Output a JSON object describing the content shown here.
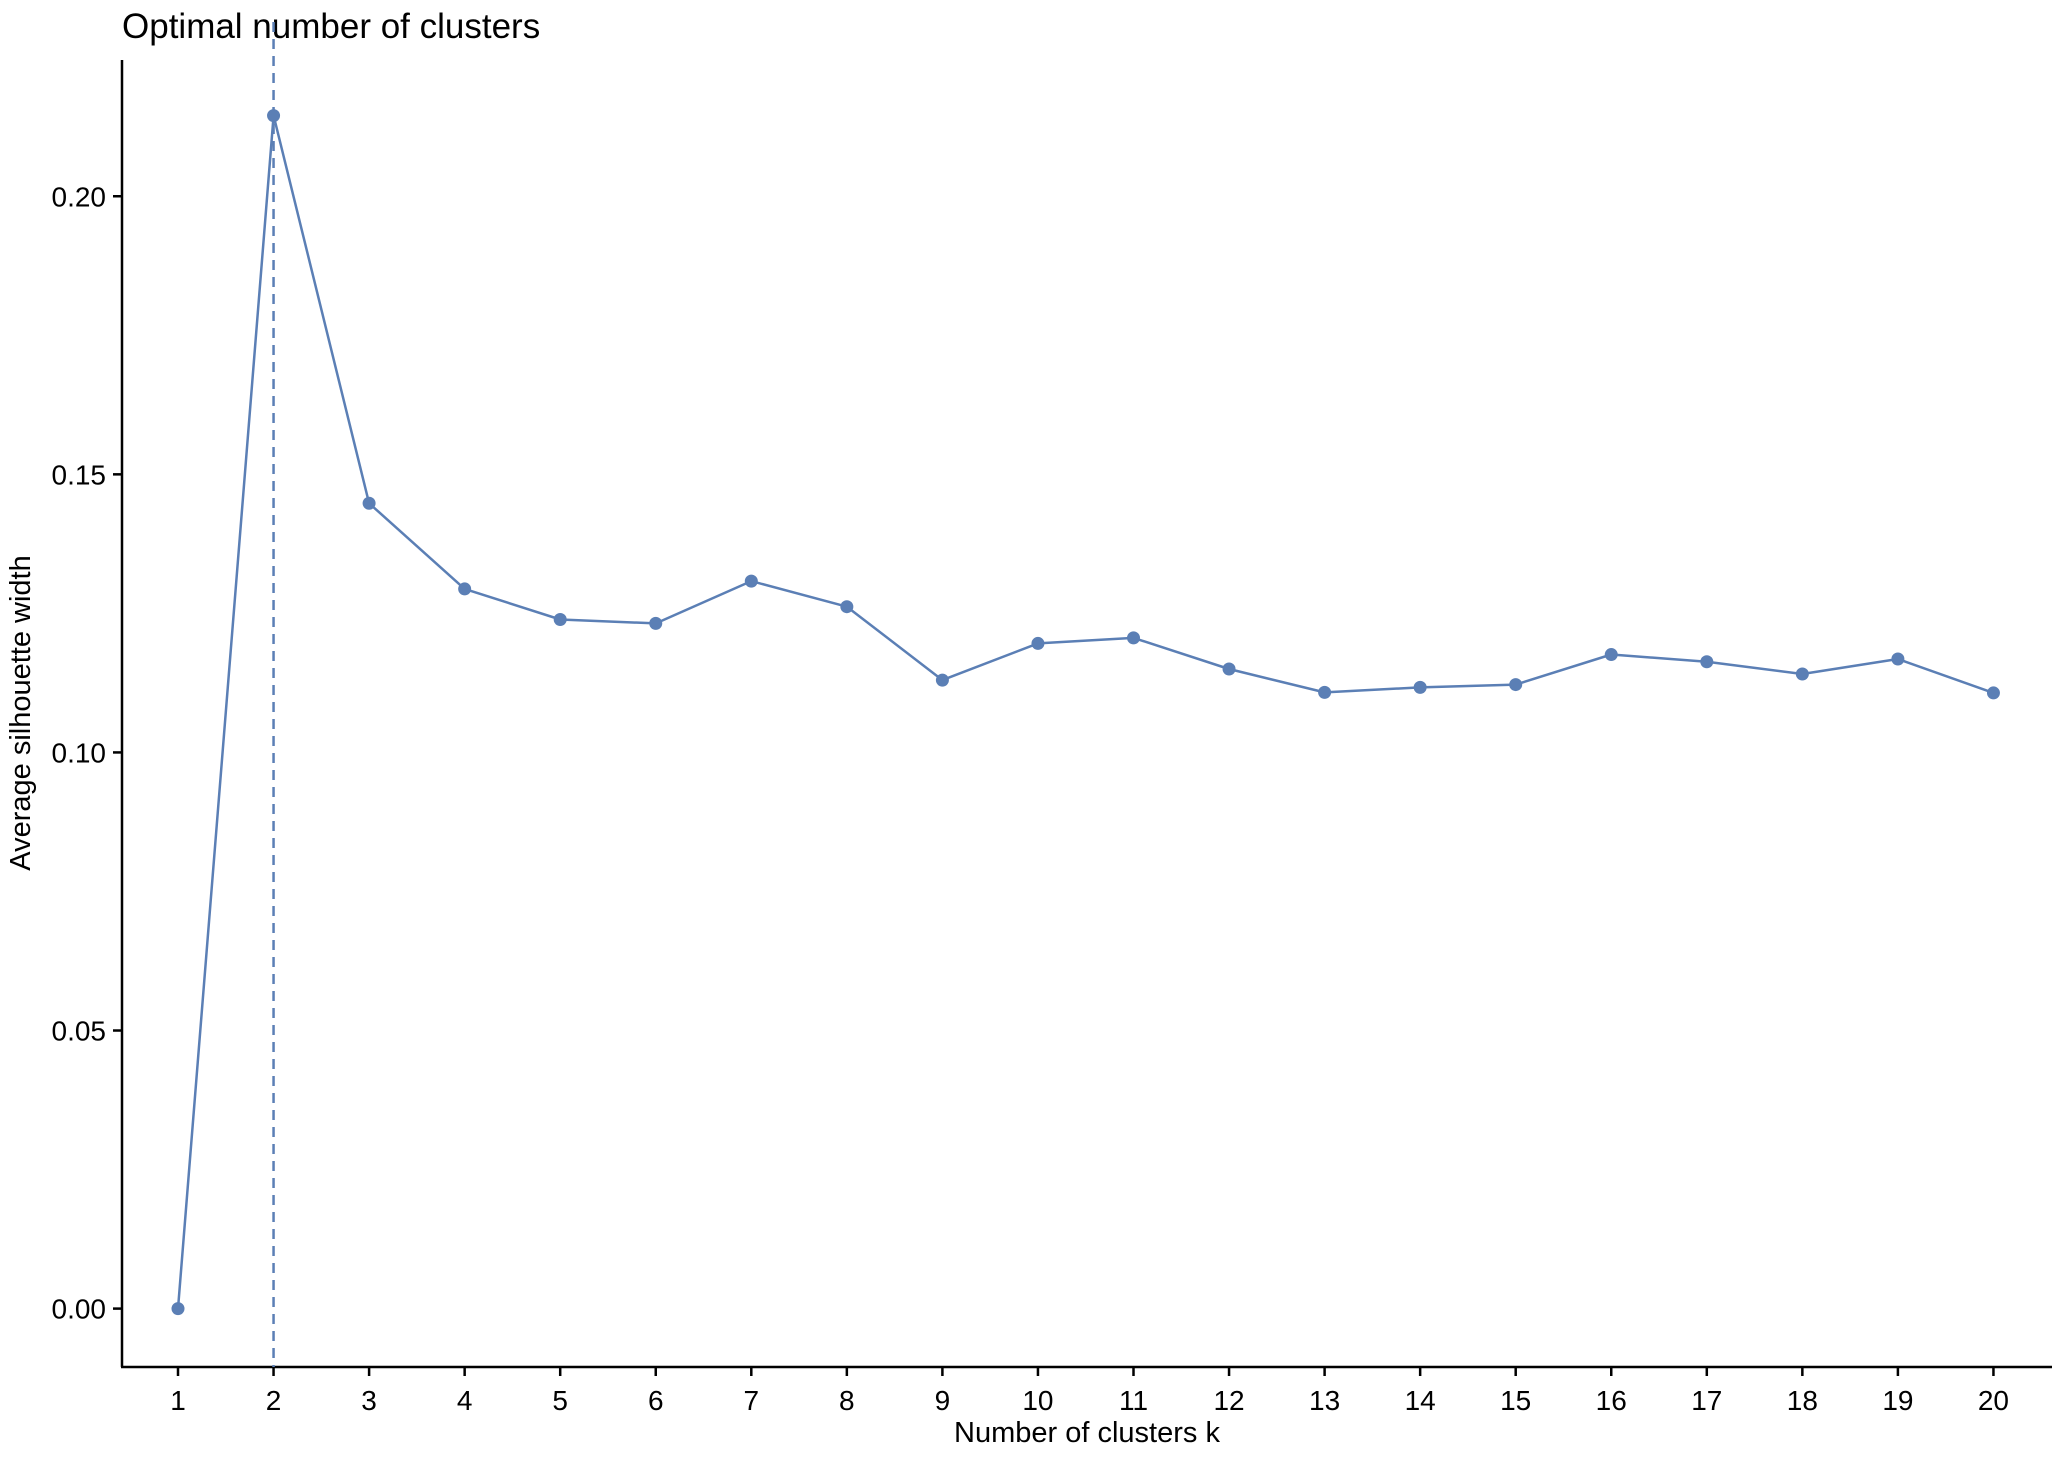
{
  "chart_data": {
    "type": "line",
    "title": "Optimal number of clusters",
    "xlabel": "Number of clusters k",
    "ylabel": "Average silhouette width",
    "x": [
      "1",
      "2",
      "3",
      "4",
      "5",
      "6",
      "7",
      "8",
      "9",
      "10",
      "11",
      "12",
      "13",
      "14",
      "15",
      "16",
      "17",
      "18",
      "19",
      "20"
    ],
    "series": [
      {
        "values": [
          0.0,
          0.2145,
          0.1448,
          0.1294,
          0.1239,
          0.1232,
          0.1308,
          0.1262,
          0.113,
          0.1196,
          0.1206,
          0.115,
          0.1108,
          0.1117,
          0.1122,
          0.1176,
          0.1163,
          0.1141,
          0.1168,
          0.1107
        ]
      }
    ],
    "optimal_k": "2",
    "ylim": [
      -0.0105,
      0.2245
    ],
    "yticks": [
      "0.00",
      "0.05",
      "0.10",
      "0.15",
      "0.20"
    ],
    "ytick_values": [
      0.0,
      0.05,
      0.1,
      0.15,
      0.2
    ],
    "grid": false,
    "legend": "none",
    "colors": {
      "series": "#5b7fb5",
      "axis": "#000000"
    }
  }
}
